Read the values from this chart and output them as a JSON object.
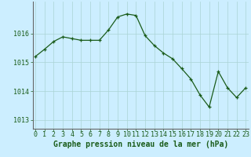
{
  "x": [
    0,
    1,
    2,
    3,
    4,
    5,
    6,
    7,
    8,
    9,
    10,
    11,
    12,
    13,
    14,
    15,
    16,
    17,
    18,
    19,
    20,
    21,
    22,
    23
  ],
  "y": [
    1015.2,
    1015.45,
    1015.72,
    1015.88,
    1015.82,
    1015.76,
    1015.76,
    1015.76,
    1016.12,
    1016.57,
    1016.67,
    1016.62,
    1015.92,
    1015.58,
    1015.32,
    1015.12,
    1014.78,
    1014.42,
    1013.87,
    1013.45,
    1014.68,
    1014.12,
    1013.78,
    1014.12
  ],
  "line_color": "#1a5c1a",
  "marker": "+",
  "bg_color": "#cceeff",
  "grid_color": "#aad4d4",
  "xlabel": "Graphe pression niveau de la mer (hPa)",
  "yticks": [
    1013,
    1014,
    1015,
    1016
  ],
  "xticks": [
    0,
    1,
    2,
    3,
    4,
    5,
    6,
    7,
    8,
    9,
    10,
    11,
    12,
    13,
    14,
    15,
    16,
    17,
    18,
    19,
    20,
    21,
    22,
    23
  ],
  "ylim": [
    1012.7,
    1017.1
  ],
  "xlim": [
    -0.3,
    23.3
  ],
  "axis_color": "#666666",
  "tick_label_color": "#1a5c1a",
  "xlabel_color": "#1a5c1a",
  "xlabel_fontsize": 7.0,
  "tick_fontsize": 6.0,
  "linewidth": 0.9,
  "markersize": 3.5,
  "markeredgewidth": 0.9
}
